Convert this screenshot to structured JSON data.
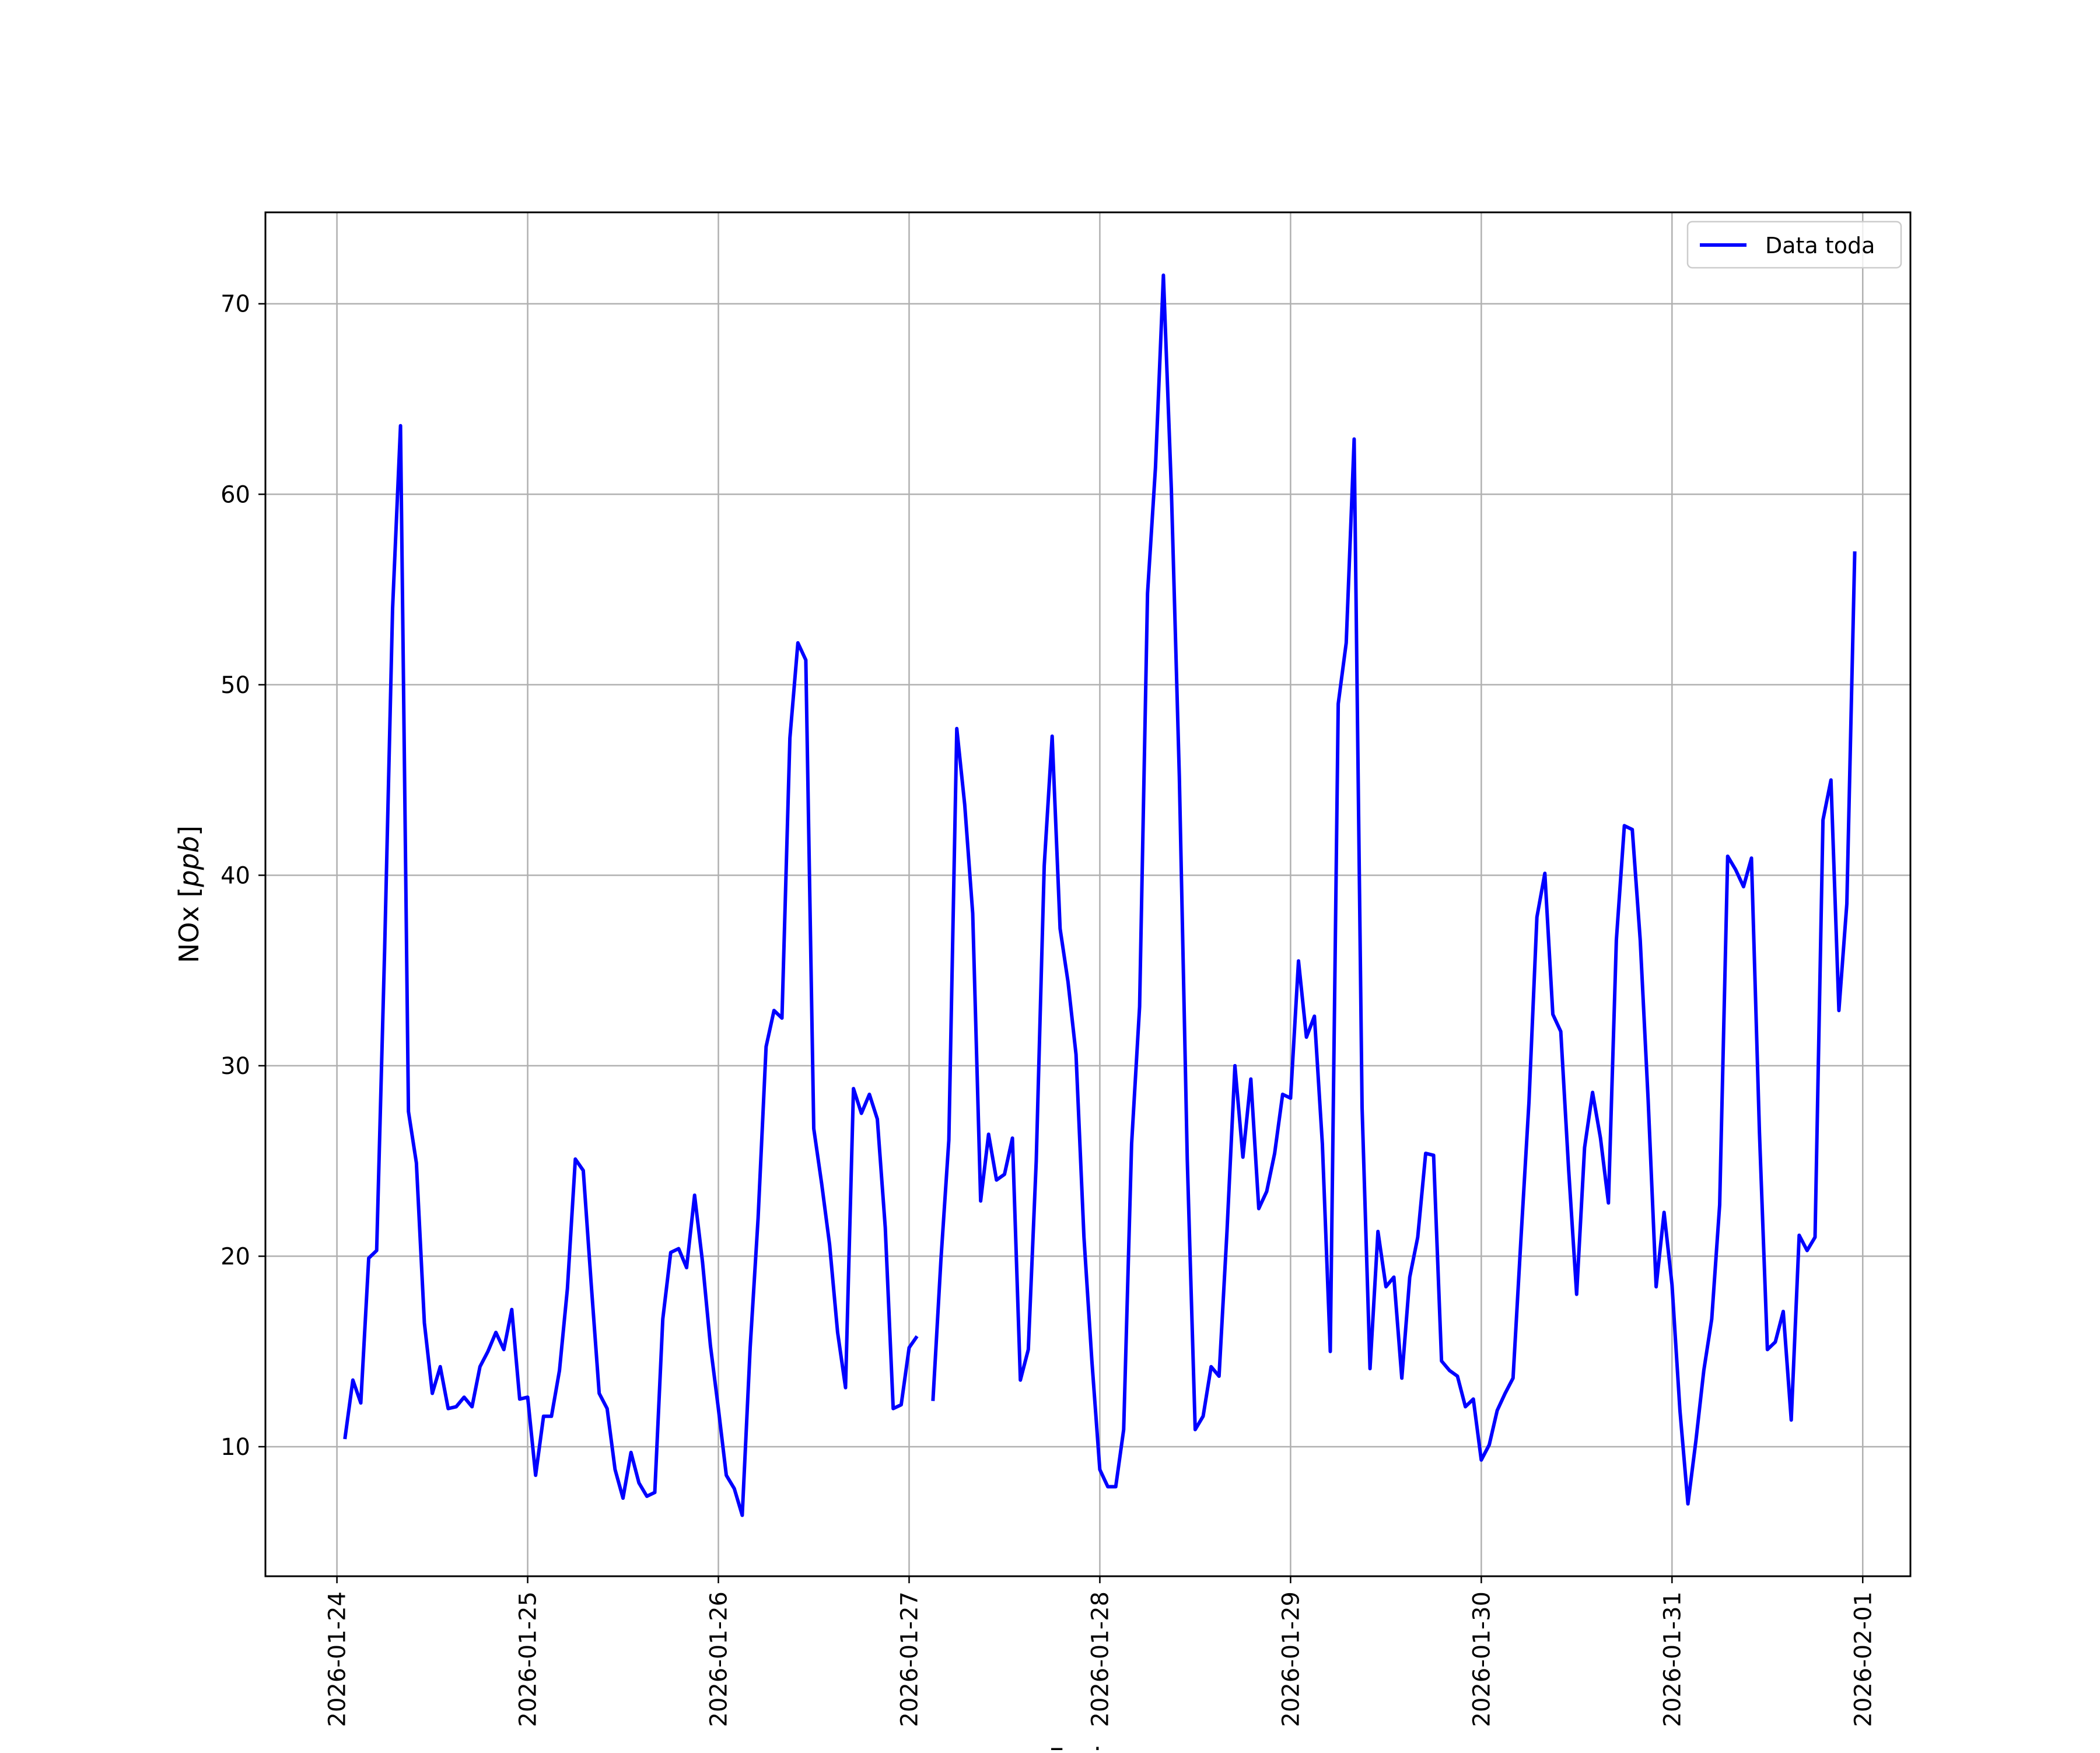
{
  "chart_data": {
    "type": "line",
    "title": "",
    "xlabel": "Fecha",
    "ylabel": "NOx [ppb]",
    "ylabel_parts": {
      "prefix": "NOx [",
      "unit": "ppb",
      "suffix": "]"
    },
    "xlim": [
      "2026-01-23 15:00",
      "2026-02-01 06:00"
    ],
    "ylim": [
      3.2,
      74.8
    ],
    "x_ticks": [
      "2026-01-24",
      "2026-01-25",
      "2026-01-26",
      "2026-01-27",
      "2026-01-28",
      "2026-01-29",
      "2026-01-30",
      "2026-01-31",
      "2026-02-01"
    ],
    "y_ticks": [
      10,
      20,
      30,
      40,
      50,
      60,
      70
    ],
    "y_tick_labels": [
      "10",
      "20",
      "30",
      "40",
      "50",
      "60",
      "70"
    ],
    "grid": true,
    "legend": {
      "position": "top-right",
      "entries": [
        "Data toda"
      ]
    },
    "series": [
      {
        "name": "Data toda",
        "color": "#0000ff",
        "points": [
          [
            "2026-01-24 01:00",
            10.4
          ],
          [
            "2026-01-24 02:00",
            13.5
          ],
          [
            "2026-01-24 03:00",
            12.3
          ],
          [
            "2026-01-24 04:00",
            19.9
          ],
          [
            "2026-01-24 05:00",
            20.3
          ],
          [
            "2026-01-24 06:00",
            36.0
          ],
          [
            "2026-01-24 07:00",
            54.0
          ],
          [
            "2026-01-24 08:00",
            63.6
          ],
          [
            "2026-01-24 09:00",
            27.6
          ],
          [
            "2026-01-24 10:00",
            24.9
          ],
          [
            "2026-01-24 11:00",
            16.5
          ],
          [
            "2026-01-24 12:00",
            12.8
          ],
          [
            "2026-01-24 13:00",
            14.2
          ],
          [
            "2026-01-24 14:00",
            12.0
          ],
          [
            "2026-01-24 15:00",
            12.1
          ],
          [
            "2026-01-24 16:00",
            12.6
          ],
          [
            "2026-01-24 17:00",
            12.1
          ],
          [
            "2026-01-24 18:00",
            14.2
          ],
          [
            "2026-01-24 19:00",
            15.0
          ],
          [
            "2026-01-24 20:00",
            16.0
          ],
          [
            "2026-01-24 21:00",
            15.1
          ],
          [
            "2026-01-24 22:00",
            17.2
          ],
          [
            "2026-01-24 23:00",
            12.5
          ],
          [
            "2026-01-25 00:00",
            12.6
          ],
          [
            "2026-01-25 01:00",
            8.5
          ],
          [
            "2026-01-25 02:00",
            11.6
          ],
          [
            "2026-01-25 03:00",
            11.6
          ],
          [
            "2026-01-25 04:00",
            14.0
          ],
          [
            "2026-01-25 05:00",
            18.3
          ],
          [
            "2026-01-25 06:00",
            25.1
          ],
          [
            "2026-01-25 07:00",
            24.5
          ],
          [
            "2026-01-25 08:00",
            18.5
          ],
          [
            "2026-01-25 09:00",
            12.8
          ],
          [
            "2026-01-25 10:00",
            12.0
          ],
          [
            "2026-01-25 11:00",
            8.8
          ],
          [
            "2026-01-25 12:00",
            7.3
          ],
          [
            "2026-01-25 13:00",
            9.7
          ],
          [
            "2026-01-25 14:00",
            8.1
          ],
          [
            "2026-01-25 15:00",
            7.4
          ],
          [
            "2026-01-25 16:00",
            7.6
          ],
          [
            "2026-01-25 17:00",
            16.7
          ],
          [
            "2026-01-25 18:00",
            20.2
          ],
          [
            "2026-01-25 19:00",
            20.4
          ],
          [
            "2026-01-25 20:00",
            19.4
          ],
          [
            "2026-01-25 21:00",
            23.2
          ],
          [
            "2026-01-25 22:00",
            19.7
          ],
          [
            "2026-01-25 23:00",
            15.3
          ],
          [
            "2026-01-26 00:00",
            12.0
          ],
          [
            "2026-01-26 01:00",
            8.5
          ],
          [
            "2026-01-26 02:00",
            7.8
          ],
          [
            "2026-01-26 03:00",
            6.4
          ],
          [
            "2026-01-26 04:00",
            15.2
          ],
          [
            "2026-01-26 05:00",
            22.0
          ],
          [
            "2026-01-26 06:00",
            31.0
          ],
          [
            "2026-01-26 07:00",
            32.9
          ],
          [
            "2026-01-26 08:00",
            32.5
          ],
          [
            "2026-01-26 09:00",
            47.2
          ],
          [
            "2026-01-26 10:00",
            52.2
          ],
          [
            "2026-01-26 11:00",
            51.3
          ],
          [
            "2026-01-26 12:00",
            26.7
          ],
          [
            "2026-01-26 13:00",
            23.8
          ],
          [
            "2026-01-26 14:00",
            20.6
          ],
          [
            "2026-01-26 15:00",
            16.0
          ],
          [
            "2026-01-26 16:00",
            13.1
          ],
          [
            "2026-01-26 17:00",
            28.8
          ],
          [
            "2026-01-26 18:00",
            27.5
          ],
          [
            "2026-01-26 19:00",
            28.5
          ],
          [
            "2026-01-26 20:00",
            27.2
          ],
          [
            "2026-01-26 21:00",
            21.5
          ],
          [
            "2026-01-26 22:00",
            12.0
          ],
          [
            "2026-01-26 23:00",
            12.2
          ],
          [
            "2026-01-27 00:00",
            15.2
          ],
          [
            "2026-01-27 01:00",
            15.8
          ],
          [
            "2026-01-27 02:00",
            null
          ],
          [
            "2026-01-27 03:00",
            12.4
          ],
          [
            "2026-01-27 04:00",
            19.8
          ],
          [
            "2026-01-27 05:00",
            26.1
          ],
          [
            "2026-01-27 06:00",
            47.7
          ],
          [
            "2026-01-27 07:00",
            43.7
          ],
          [
            "2026-01-27 08:00",
            38.0
          ],
          [
            "2026-01-27 09:00",
            22.9
          ],
          [
            "2026-01-27 10:00",
            26.4
          ],
          [
            "2026-01-27 11:00",
            24.0
          ],
          [
            "2026-01-27 12:00",
            24.3
          ],
          [
            "2026-01-27 13:00",
            26.2
          ],
          [
            "2026-01-27 14:00",
            13.5
          ],
          [
            "2026-01-27 15:00",
            15.1
          ],
          [
            "2026-01-27 16:00",
            25.0
          ],
          [
            "2026-01-27 17:00",
            40.5
          ],
          [
            "2026-01-27 18:00",
            47.3
          ],
          [
            "2026-01-27 19:00",
            37.2
          ],
          [
            "2026-01-27 20:00",
            34.4
          ],
          [
            "2026-01-27 21:00",
            30.6
          ],
          [
            "2026-01-27 22:00",
            21.0
          ],
          [
            "2026-01-27 23:00",
            14.5
          ],
          [
            "2026-01-28 00:00",
            8.8
          ],
          [
            "2026-01-28 01:00",
            7.9
          ],
          [
            "2026-01-28 02:00",
            7.9
          ],
          [
            "2026-01-28 03:00",
            10.9
          ],
          [
            "2026-01-28 04:00",
            25.9
          ],
          [
            "2026-01-28 05:00",
            33.1
          ],
          [
            "2026-01-28 06:00",
            54.8
          ],
          [
            "2026-01-28 07:00",
            61.4
          ],
          [
            "2026-01-28 08:00",
            71.5
          ],
          [
            "2026-01-28 09:00",
            60.3
          ],
          [
            "2026-01-28 10:00",
            45.2
          ],
          [
            "2026-01-28 11:00",
            25.1
          ],
          [
            "2026-01-28 12:00",
            10.9
          ],
          [
            "2026-01-28 13:00",
            11.6
          ],
          [
            "2026-01-28 14:00",
            14.2
          ],
          [
            "2026-01-28 15:00",
            13.7
          ],
          [
            "2026-01-28 16:00",
            21.3
          ],
          [
            "2026-01-28 17:00",
            30.0
          ],
          [
            "2026-01-28 18:00",
            25.2
          ],
          [
            "2026-01-28 19:00",
            29.3
          ],
          [
            "2026-01-28 20:00",
            22.5
          ],
          [
            "2026-01-28 21:00",
            23.4
          ],
          [
            "2026-01-28 22:00",
            25.4
          ],
          [
            "2026-01-28 23:00",
            28.5
          ],
          [
            "2026-01-29 00:00",
            28.3
          ],
          [
            "2026-01-29 01:00",
            35.5
          ],
          [
            "2026-01-29 02:00",
            31.5
          ],
          [
            "2026-01-29 03:00",
            32.6
          ],
          [
            "2026-01-29 04:00",
            25.9
          ],
          [
            "2026-01-29 05:00",
            15.0
          ],
          [
            "2026-01-29 06:00",
            49.0
          ],
          [
            "2026-01-29 07:00",
            52.2
          ],
          [
            "2026-01-29 08:00",
            62.9
          ],
          [
            "2026-01-29 09:00",
            27.8
          ],
          [
            "2026-01-29 10:00",
            14.1
          ],
          [
            "2026-01-29 11:00",
            21.3
          ],
          [
            "2026-01-29 12:00",
            18.4
          ],
          [
            "2026-01-29 13:00",
            18.9
          ],
          [
            "2026-01-29 14:00",
            13.6
          ],
          [
            "2026-01-29 15:00",
            18.9
          ],
          [
            "2026-01-29 16:00",
            21.0
          ],
          [
            "2026-01-29 17:00",
            25.4
          ],
          [
            "2026-01-29 18:00",
            25.3
          ],
          [
            "2026-01-29 19:00",
            14.5
          ],
          [
            "2026-01-29 20:00",
            14.0
          ],
          [
            "2026-01-29 21:00",
            13.7
          ],
          [
            "2026-01-29 22:00",
            12.1
          ],
          [
            "2026-01-29 23:00",
            12.5
          ],
          [
            "2026-01-30 00:00",
            9.3
          ],
          [
            "2026-01-30 01:00",
            10.1
          ],
          [
            "2026-01-30 02:00",
            11.9
          ],
          [
            "2026-01-30 03:00",
            12.8
          ],
          [
            "2026-01-30 04:00",
            13.6
          ],
          [
            "2026-01-30 05:00",
            21.0
          ],
          [
            "2026-01-30 06:00",
            28.1
          ],
          [
            "2026-01-30 07:00",
            37.8
          ],
          [
            "2026-01-30 08:00",
            40.1
          ],
          [
            "2026-01-30 09:00",
            32.7
          ],
          [
            "2026-01-30 10:00",
            31.8
          ],
          [
            "2026-01-30 11:00",
            24.5
          ],
          [
            "2026-01-30 12:00",
            18.0
          ],
          [
            "2026-01-30 13:00",
            25.7
          ],
          [
            "2026-01-30 14:00",
            28.6
          ],
          [
            "2026-01-30 15:00",
            26.2
          ],
          [
            "2026-01-30 16:00",
            22.8
          ],
          [
            "2026-01-30 17:00",
            36.6
          ],
          [
            "2026-01-30 18:00",
            42.6
          ],
          [
            "2026-01-30 19:00",
            42.4
          ],
          [
            "2026-01-30 20:00",
            36.6
          ],
          [
            "2026-01-30 21:00",
            28.2
          ],
          [
            "2026-01-30 22:00",
            18.4
          ],
          [
            "2026-01-30 23:00",
            22.3
          ],
          [
            "2026-01-31 00:00",
            18.5
          ],
          [
            "2026-01-31 01:00",
            11.9
          ],
          [
            "2026-01-31 02:00",
            7.0
          ],
          [
            "2026-01-31 03:00",
            10.3
          ],
          [
            "2026-01-31 04:00",
            14.0
          ],
          [
            "2026-01-31 05:00",
            16.7
          ],
          [
            "2026-01-31 06:00",
            22.7
          ],
          [
            "2026-01-31 07:00",
            41.0
          ],
          [
            "2026-01-31 08:00",
            40.3
          ],
          [
            "2026-01-31 09:00",
            39.4
          ],
          [
            "2026-01-31 10:00",
            40.9
          ],
          [
            "2026-01-31 11:00",
            26.5
          ],
          [
            "2026-01-31 12:00",
            15.1
          ],
          [
            "2026-01-31 13:00",
            15.5
          ],
          [
            "2026-01-31 14:00",
            17.1
          ],
          [
            "2026-01-31 15:00",
            11.4
          ],
          [
            "2026-01-31 16:00",
            21.1
          ],
          [
            "2026-01-31 17:00",
            20.3
          ],
          [
            "2026-01-31 18:00",
            21.0
          ],
          [
            "2026-01-31 19:00",
            42.9
          ],
          [
            "2026-01-31 20:00",
            45.0
          ],
          [
            "2026-01-31 21:00",
            32.9
          ],
          [
            "2026-01-31 22:00",
            38.5
          ],
          [
            "2026-01-31 23:00",
            57.0
          ]
        ]
      }
    ]
  }
}
